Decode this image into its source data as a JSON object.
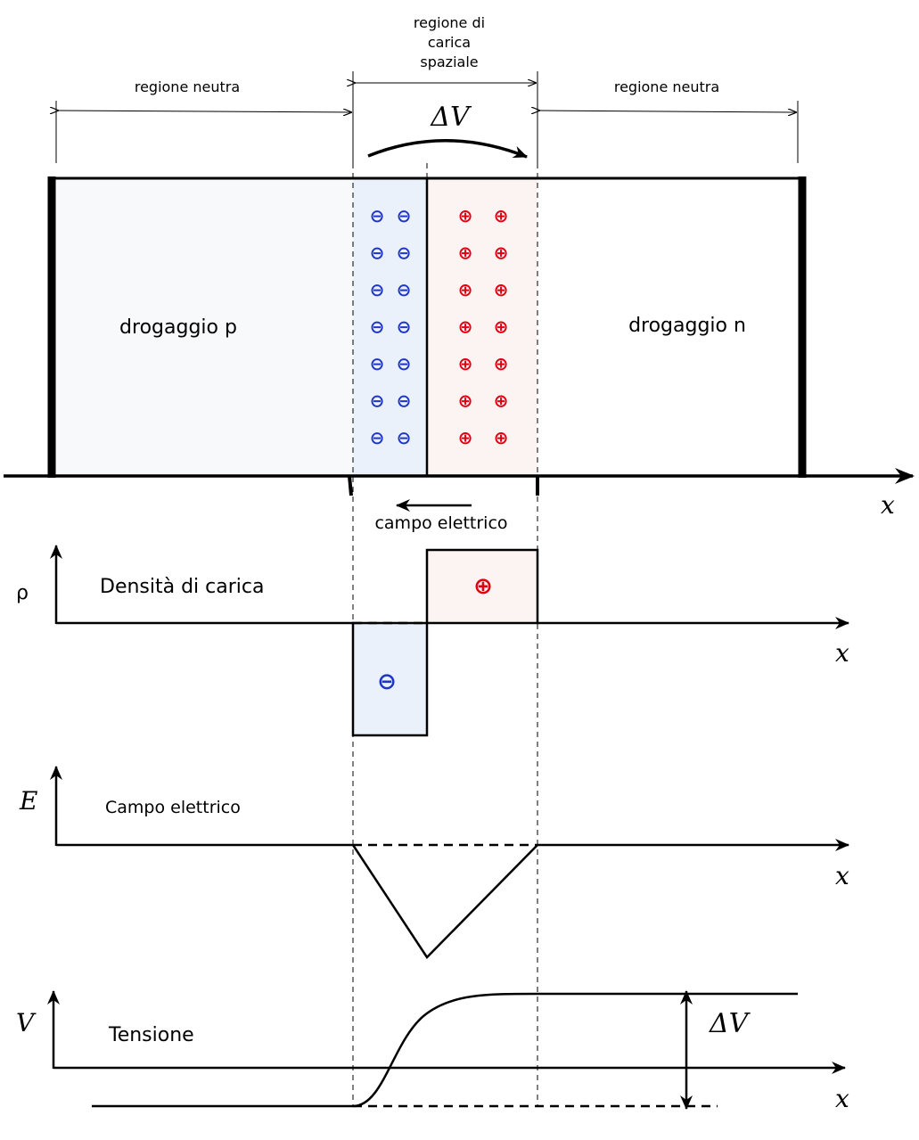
{
  "top_labels": {
    "left_neutral": "regione neutra",
    "right_neutral": "regione neutra",
    "space_charge_line1": "regione di",
    "space_charge_line2": "carica",
    "space_charge_line3": "spaziale",
    "potential_diff": "ΔV"
  },
  "junction": {
    "p_region_label": "drogaggio p",
    "n_region_label": "drogaggio n",
    "negative_symbol": "⊖",
    "positive_symbol": "⊕",
    "negative_rows": 7,
    "negative_cols": 2,
    "positive_rows": 7,
    "positive_cols": 2,
    "field_label": "campo elettrico",
    "x_axis_label": "x"
  },
  "charge_density_plot": {
    "y_label": "ρ",
    "title": "Densità di carica",
    "positive_symbol": "⊕",
    "negative_symbol": "⊖",
    "x_axis_label": "x"
  },
  "electric_field_plot": {
    "y_label": "E",
    "title": "Campo elettrico",
    "x_axis_label": "x"
  },
  "voltage_plot": {
    "y_label": "V",
    "title": "Tensione",
    "potential_diff": "ΔV",
    "x_axis_label": "x"
  },
  "colors": {
    "negative": "#1f35c8",
    "positive": "#e00010",
    "p_fill": "#f7f9fb",
    "neg_fill": "#eaf1fa",
    "pos_fill": "#fcf3f3"
  }
}
